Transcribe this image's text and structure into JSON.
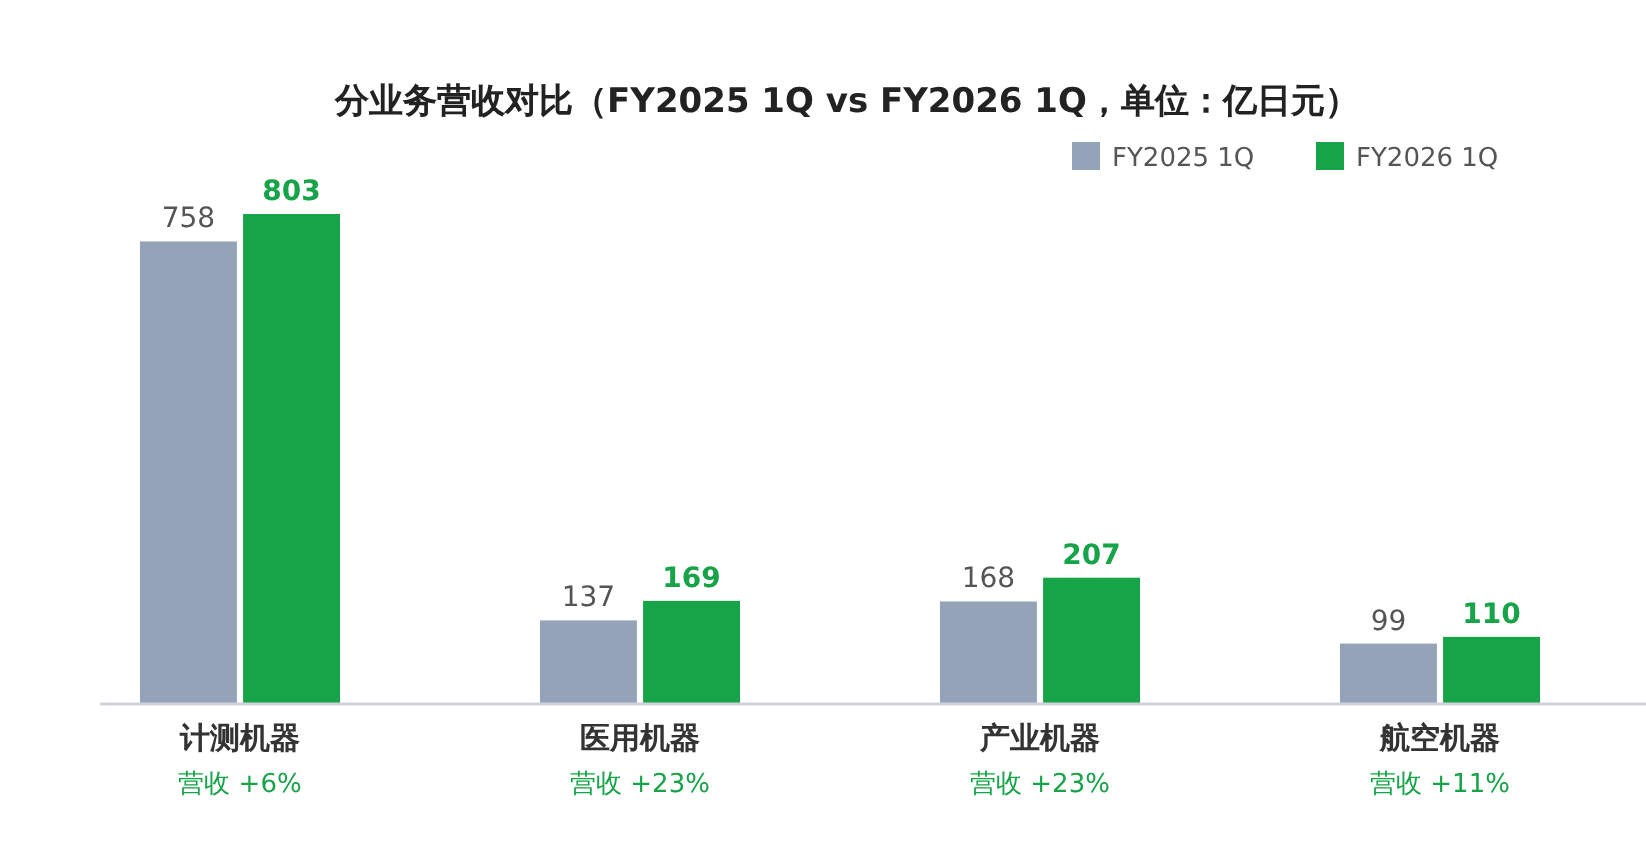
{
  "chart_data": {
    "type": "bar",
    "title": "分业务营收对比（FY2025 1Q vs FY2026 1Q，单位：亿日元）",
    "categories": [
      "计测机器",
      "医用机器",
      "产业机器",
      "航空机器"
    ],
    "series": [
      {
        "name": "FY2025 1Q",
        "color": "#95a3b8",
        "values": [
          758,
          137,
          168,
          99
        ]
      },
      {
        "name": "FY2026 1Q",
        "color": "#17a348",
        "values": [
          803,
          169,
          207,
          110
        ]
      }
    ],
    "data_labels": true,
    "legend": "top right",
    "grid": false,
    "annotations": [
      "营收 +6%",
      "营收 +23%",
      "营收 +23%",
      "营收 +11%"
    ]
  }
}
